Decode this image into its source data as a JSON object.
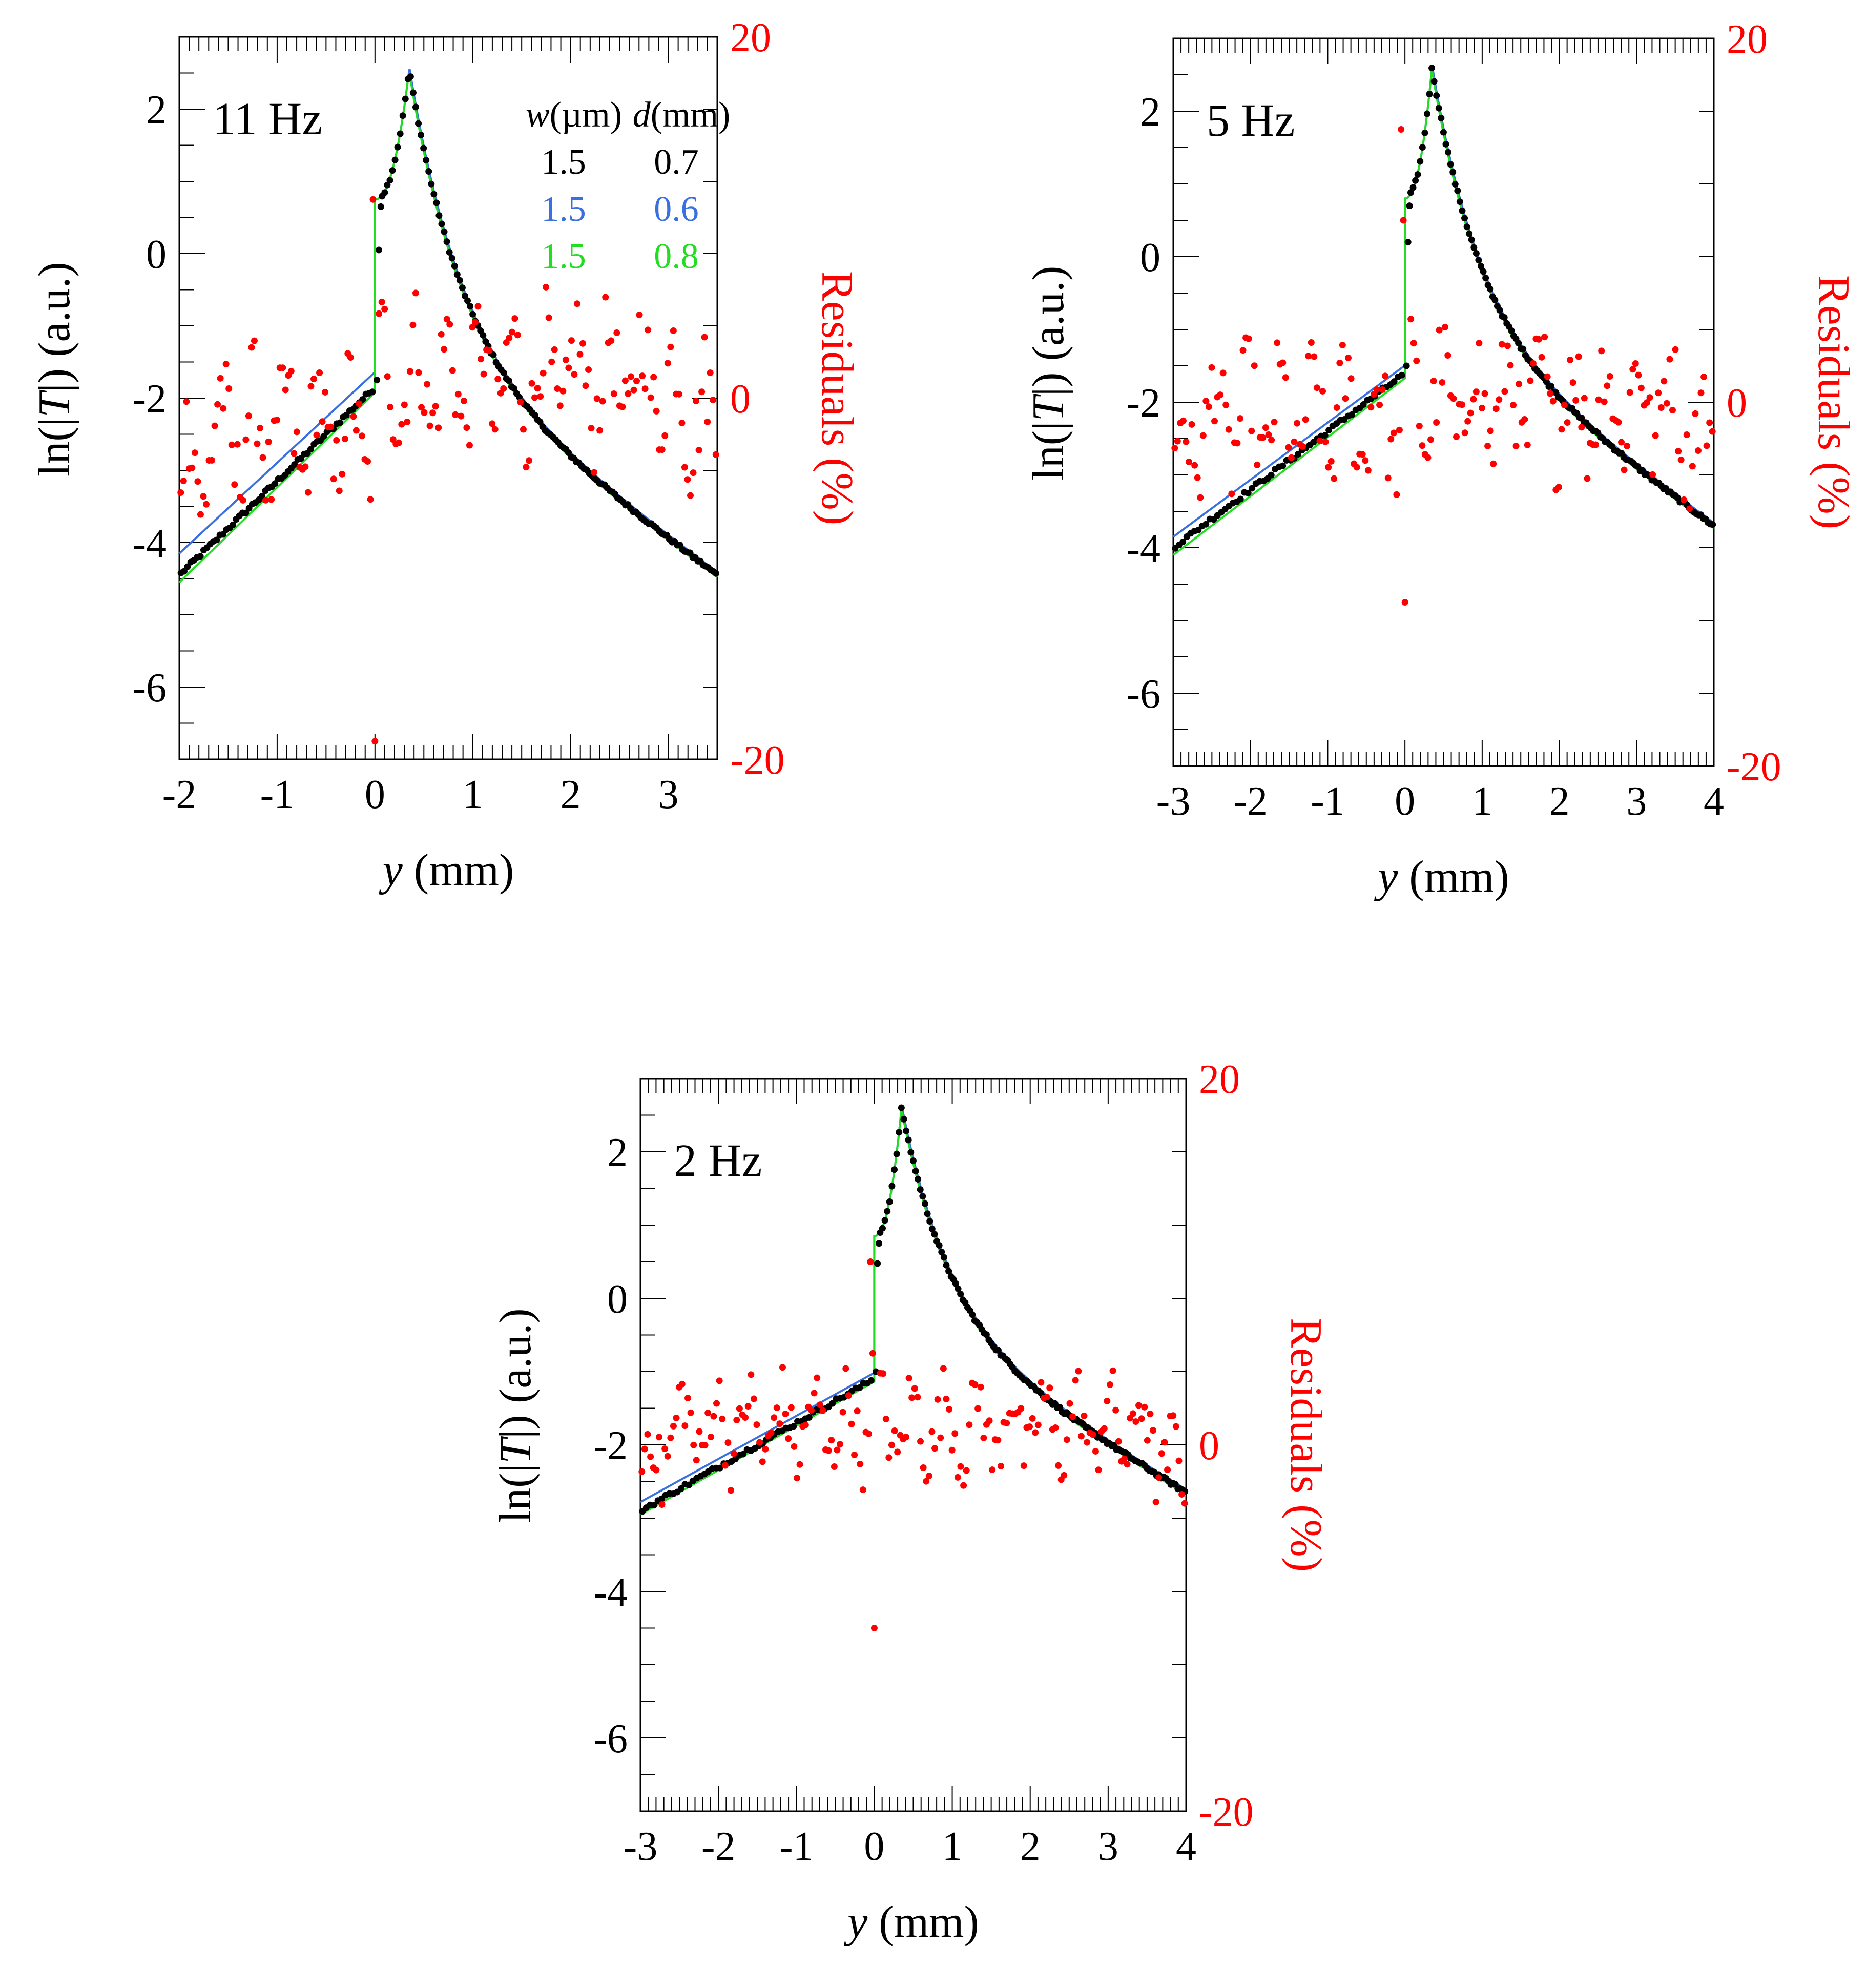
{
  "colors": {
    "data": "#000000",
    "blue": "#3a6fe0",
    "green": "#22dd22",
    "residual": "#ff0000",
    "axis": "#000000"
  },
  "legend": {
    "col1_header_var": "w",
    "col1_header_unit": "(µm)",
    "col2_header_var": "d",
    "col2_header_unit": "(mm)",
    "rows": [
      {
        "w": "1.5",
        "d": "0.7",
        "color": "#000000"
      },
      {
        "w": "1.5",
        "d": "0.6",
        "color": "#3a6fe0"
      },
      {
        "w": "1.5",
        "d": "0.8",
        "color": "#22dd22"
      }
    ]
  },
  "axis_text": {
    "ylabel_prefix": "ln(|",
    "ylabel_var": "T",
    "ylabel_suffix": "|) (a.u.)",
    "xlabel_var": "y",
    "xlabel_unit": " (mm)",
    "right_label": "Residuals (%)"
  },
  "chart_data": [
    {
      "type": "scatter",
      "title": "11 Hz",
      "xlabel": "y (mm)",
      "ylabel": "ln(|T|) (a.u.)",
      "y2label": "Residuals (%)",
      "xlim": [
        -2,
        3.5
      ],
      "ylim": [
        -7,
        3
      ],
      "y2lim": [
        -20,
        20
      ],
      "xticks": [
        -2,
        -1,
        0,
        1,
        2,
        3
      ],
      "yticks": [
        -6,
        -4,
        -2,
        0,
        2
      ],
      "y2ticks": [
        -20,
        0,
        20
      ],
      "peak_x": 0.35,
      "peak_y": 2.55,
      "jump_low": -1.85,
      "jump_high": 0.75,
      "left_start": -4.45,
      "right_end": -4.45,
      "blue_offset_left": 0.3,
      "green_offset_left": -0.1,
      "series": [
        {
          "name": "data",
          "color": "#000000",
          "x_range": [
            -2,
            3.5
          ]
        },
        {
          "name": "w=1.5 µm, d=0.6 mm",
          "color": "#3a6fe0"
        },
        {
          "name": "w=1.5 µm, d=0.8 mm",
          "color": "#22dd22"
        },
        {
          "name": "Residuals",
          "color": "#ff0000",
          "axis": "right",
          "typical_range": [
            -8,
            4
          ]
        }
      ],
      "residual_left_mean": -2,
      "residual_right_mean": 1,
      "residual_special": [
        {
          "x": -0.02,
          "y": 11
        },
        {
          "x": 0.0,
          "y": -19
        }
      ]
    },
    {
      "type": "scatter",
      "title": "5 Hz",
      "xlabel": "y (mm)",
      "ylabel": "ln(|T|) (a.u.)",
      "y2label": "Residuals (%)",
      "xlim": [
        -3,
        4
      ],
      "ylim": [
        -7,
        3
      ],
      "y2lim": [
        -20,
        20
      ],
      "xticks": [
        -3,
        -2,
        -1,
        0,
        1,
        2,
        3,
        4
      ],
      "yticks": [
        -6,
        -4,
        -2,
        0,
        2
      ],
      "y2ticks": [
        -20,
        0,
        20
      ],
      "peak_x": 0.35,
      "peak_y": 2.6,
      "jump_low": -1.6,
      "jump_high": 0.8,
      "left_start": -4.0,
      "right_end": -3.7,
      "blue_offset_left": 0.15,
      "green_offset_left": -0.1,
      "series": [
        {
          "name": "data",
          "color": "#000000",
          "x_range": [
            -3,
            4
          ]
        },
        {
          "name": "w=1.5 µm, d=0.6 mm",
          "color": "#3a6fe0"
        },
        {
          "name": "w=1.5 µm, d=0.8 mm",
          "color": "#22dd22"
        },
        {
          "name": "Residuals",
          "color": "#ff0000",
          "axis": "right",
          "typical_range": [
            -6,
            5
          ]
        }
      ],
      "residual_left_mean": -1,
      "residual_right_mean": 0,
      "residual_special": [
        {
          "x": -0.05,
          "y": 15
        },
        {
          "x": -0.02,
          "y": 10
        },
        {
          "x": 0.0,
          "y": -11
        }
      ]
    },
    {
      "type": "scatter",
      "title": "2 Hz",
      "xlabel": "y (mm)",
      "ylabel": "ln(|T|) (a.u.)",
      "y2label": "Residuals (%)",
      "xlim": [
        -3,
        4
      ],
      "ylim": [
        -7,
        3
      ],
      "y2lim": [
        -20,
        20
      ],
      "xticks": [
        -3,
        -2,
        -1,
        0,
        1,
        2,
        3,
        4
      ],
      "yticks": [
        -6,
        -4,
        -2,
        0,
        2
      ],
      "y2ticks": [
        -20,
        0,
        20
      ],
      "peak_x": 0.35,
      "peak_y": 2.6,
      "jump_low": -1.1,
      "jump_high": 0.85,
      "left_start": -2.9,
      "right_end": -2.65,
      "blue_offset_left": 0.12,
      "green_offset_left": -0.05,
      "series": [
        {
          "name": "data",
          "color": "#000000",
          "x_range": [
            -3,
            4
          ]
        },
        {
          "name": "w=1.5 µm, d=0.6 mm",
          "color": "#3a6fe0"
        },
        {
          "name": "w=1.5 µm, d=0.8 mm",
          "color": "#22dd22"
        },
        {
          "name": "Residuals",
          "color": "#ff0000",
          "axis": "right",
          "typical_range": [
            -4,
            4
          ]
        }
      ],
      "residual_left_mean": 1,
      "residual_right_mean": 1,
      "residual_special": [
        {
          "x": -0.05,
          "y": 10
        },
        {
          "x": -0.02,
          "y": 5
        },
        {
          "x": 0.0,
          "y": -10
        }
      ]
    }
  ]
}
